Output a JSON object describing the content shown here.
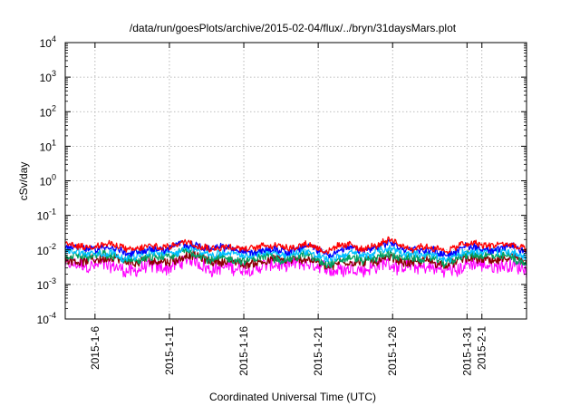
{
  "chart_data": {
    "type": "line",
    "title": "/data/run/goesPlots/archive/2015-02-04/flux/../bryn/31daysMars.plot",
    "xlabel": "Coordinated Universal Time (UTC)",
    "ylabel": "cSv/day",
    "yscale": "log",
    "ylim": [
      0.0001,
      10000
    ],
    "y_ticks": [
      {
        "base": "10",
        "exp": "-4"
      },
      {
        "base": "10",
        "exp": "-3"
      },
      {
        "base": "10",
        "exp": "-2"
      },
      {
        "base": "10",
        "exp": "-1"
      },
      {
        "base": "10",
        "exp": "0"
      },
      {
        "base": "10",
        "exp": "1"
      },
      {
        "base": "10",
        "exp": "2"
      },
      {
        "base": "10",
        "exp": "3"
      },
      {
        "base": "10",
        "exp": "4"
      }
    ],
    "xlim": [
      "2015-01-04",
      "2015-02-04"
    ],
    "x_ticks": [
      "2015-1-6",
      "2015-1-11",
      "2015-1-16",
      "2015-1-21",
      "2015-1-26",
      "2015-1-31",
      "2015-2-1"
    ],
    "grid": true,
    "series": [
      {
        "color": "#ff0000",
        "level": 0.0125,
        "noise": 0.09
      },
      {
        "color": "#0000ff",
        "level": 0.0105,
        "noise": 0.09
      },
      {
        "color": "#00bfff",
        "level": 0.0078,
        "noise": 0.1
      },
      {
        "color": "#00a060",
        "level": 0.0058,
        "noise": 0.11
      },
      {
        "color": "#8b0000",
        "level": 0.0047,
        "noise": 0.12
      },
      {
        "color": "#ff00ff",
        "level": 0.0032,
        "noise": 0.2
      }
    ]
  }
}
